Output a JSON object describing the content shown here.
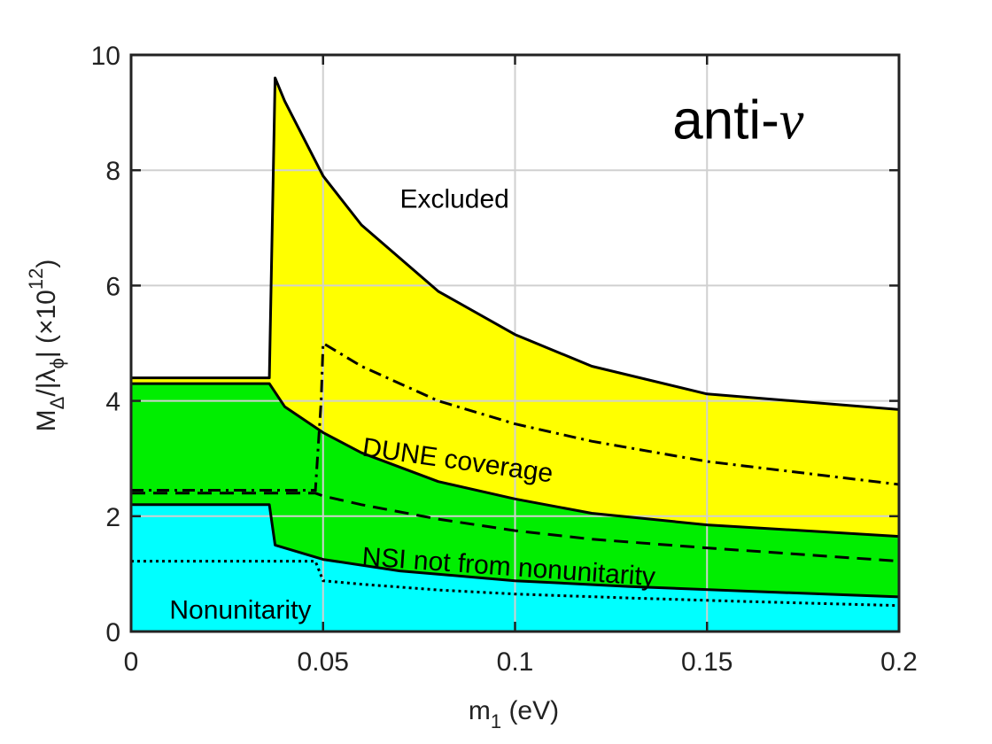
{
  "chart_data": {
    "type": "area",
    "title": "",
    "xlabel": {
      "main": "m",
      "sub": "1",
      "unit": " (eV)"
    },
    "ylabel": {
      "m": "M",
      "m_sub": "Δ",
      "mid": "/|λ",
      "l_sub": "ϕ",
      "close": "|  (×10",
      "exp": "12",
      "end": ")"
    },
    "xlim": [
      0,
      0.2
    ],
    "ylim": [
      0,
      10
    ],
    "grid": true,
    "legend": "none",
    "x_ticks": [
      0,
      0.05,
      0.1,
      0.15,
      0.2
    ],
    "x_tick_labels": [
      "0",
      "0.05",
      "0.1",
      "0.15",
      "0.2"
    ],
    "y_ticks": [
      0,
      2,
      4,
      6,
      8,
      10
    ],
    "y_tick_labels": [
      "0",
      "2",
      "4",
      "6",
      "8",
      "10"
    ],
    "colors": {
      "excluded_fill": "#ffff00",
      "nsi_fill": "#00ee00",
      "nonunitarity_fill": "#00ffff",
      "line": "#000000",
      "grid": "#d0d0d0"
    },
    "regions": [
      {
        "label": "Excluded",
        "fill": "excluded",
        "upper_x": [
          0,
          0.036,
          0.0375,
          0.04,
          0.05,
          0.06,
          0.08,
          0.1,
          0.12,
          0.15,
          0.2
        ],
        "upper_y": [
          4.4,
          4.4,
          9.6,
          9.2,
          7.9,
          7.05,
          5.9,
          5.15,
          4.6,
          4.12,
          3.85
        ]
      },
      {
        "label": "NSI not from nonunitarity",
        "fill": "nsi",
        "upper_x": [
          0,
          0.036,
          0.04,
          0.05,
          0.06,
          0.08,
          0.1,
          0.12,
          0.15,
          0.2
        ],
        "upper_y": [
          4.3,
          4.3,
          3.9,
          3.45,
          3.1,
          2.6,
          2.3,
          2.05,
          1.85,
          1.65
        ]
      },
      {
        "label": "Nonunitarity",
        "fill": "nonunitarity",
        "upper_x": [
          0,
          0.036,
          0.0375,
          0.05,
          0.07,
          0.1,
          0.13,
          0.16,
          0.2
        ],
        "upper_y": [
          2.2,
          2.2,
          1.5,
          1.25,
          1.05,
          0.88,
          0.78,
          0.7,
          0.6
        ]
      }
    ],
    "lines": [
      {
        "style": "dashdot",
        "x": [
          0,
          0.048,
          0.0495,
          0.05,
          0.06,
          0.08,
          0.1,
          0.12,
          0.15,
          0.2
        ],
        "y": [
          2.45,
          2.45,
          4.0,
          5.0,
          4.6,
          4.0,
          3.6,
          3.3,
          2.95,
          2.55
        ]
      },
      {
        "style": "dashed",
        "x": [
          0,
          0.048,
          0.05,
          0.06,
          0.08,
          0.1,
          0.12,
          0.15,
          0.2
        ],
        "y": [
          2.4,
          2.4,
          2.35,
          2.2,
          1.95,
          1.75,
          1.6,
          1.45,
          1.22
        ]
      },
      {
        "style": "dotted",
        "x": [
          0,
          0.048,
          0.05,
          0.06,
          0.08,
          0.1,
          0.13,
          0.16,
          0.2
        ],
        "y": [
          1.22,
          1.22,
          0.88,
          0.82,
          0.72,
          0.65,
          0.58,
          0.52,
          0.45
        ]
      }
    ],
    "annotations": [
      {
        "text": "Excluded",
        "x": 0.07,
        "y": 7.35,
        "size": "normal",
        "rotate": 0
      },
      {
        "text": "DUNE coverage",
        "x": 0.06,
        "y": 3.05,
        "size": "normal",
        "rotate": 8
      },
      {
        "text": "NSI not from nonunitarity",
        "x": 0.06,
        "y": 1.15,
        "size": "normal",
        "rotate": 4
      },
      {
        "text": "Nonunitarity",
        "x": 0.01,
        "y": 0.22,
        "size": "normal",
        "rotate": 0
      },
      {
        "text": "anti-",
        "x": 0.141,
        "y": 8.55,
        "size": "big",
        "rotate": 0,
        "suffix": "ν"
      }
    ]
  }
}
